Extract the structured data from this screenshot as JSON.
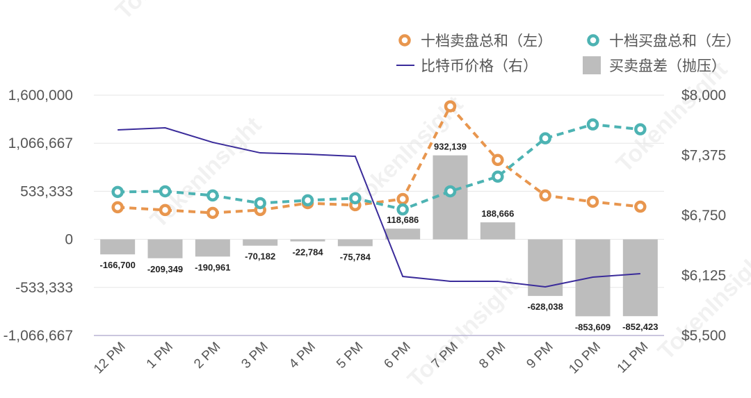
{
  "watermark": "TokenInsight",
  "colors": {
    "sell": "#E8964E",
    "buy": "#4DB3B3",
    "price": "#3A2B9A",
    "bar": "#BDBDBD",
    "grid": "#E6E6E6",
    "axis": "#B8B4D4"
  },
  "chart_data": {
    "type": "bar+line",
    "categories": [
      "12 PM",
      "1 PM",
      "2 PM",
      "3 PM",
      "4 PM",
      "5 PM",
      "6 PM",
      "7 PM",
      "8 PM",
      "9 PM",
      "10 PM",
      "11 PM"
    ],
    "left_axis": {
      "ylim": [
        -1066667,
        1600000
      ],
      "ticks": [
        1600000,
        1066667,
        533333,
        0,
        -533333,
        -1066667
      ],
      "tick_labels": [
        "1,600,000",
        "1,066,667",
        "533,333",
        "0",
        "-533,333",
        "-1,066,667"
      ]
    },
    "right_axis": {
      "ylim": [
        5500,
        8000
      ],
      "ticks": [
        8000,
        7375,
        6750,
        6125,
        5500
      ],
      "tick_labels": [
        "$8,000",
        "$7,375",
        "$6,750",
        "$6,125",
        "$5,500"
      ]
    },
    "grid": true,
    "legend_placement": "top-right",
    "series": [
      {
        "name": "十档卖盘总和（左）",
        "type": "dashed-line-marker",
        "axis": "left",
        "values": [
          356000,
          325000,
          294000,
          325000,
          402000,
          379000,
          448000,
          1476000,
          881000,
          487000,
          417000,
          363000
        ]
      },
      {
        "name": "十档买盘总和（左）",
        "type": "dashed-line-marker",
        "axis": "left",
        "values": [
          526000,
          533000,
          487000,
          402000,
          433000,
          456000,
          332000,
          533000,
          696000,
          1121000,
          1275000,
          1221000
        ]
      },
      {
        "name": "比特币价格（右）",
        "type": "line",
        "axis": "right",
        "values": [
          7639,
          7660,
          7509,
          7400,
          7386,
          7364,
          6114,
          6064,
          6064,
          6006,
          6107,
          6143
        ]
      },
      {
        "name": "买卖盘差（抛压）",
        "type": "bar",
        "axis": "left",
        "values": [
          -166700,
          -209349,
          -190961,
          -70182,
          -22784,
          -75784,
          118686,
          932139,
          188666,
          -628038,
          -853609,
          -852423
        ],
        "labels": [
          "-166,700",
          "-209,349",
          "-190,961",
          "-70,182",
          "-22,784",
          "-75,784",
          "118,686",
          "932,139",
          "188,666",
          "-628,038",
          "-853,609",
          "-852,423"
        ]
      }
    ]
  }
}
